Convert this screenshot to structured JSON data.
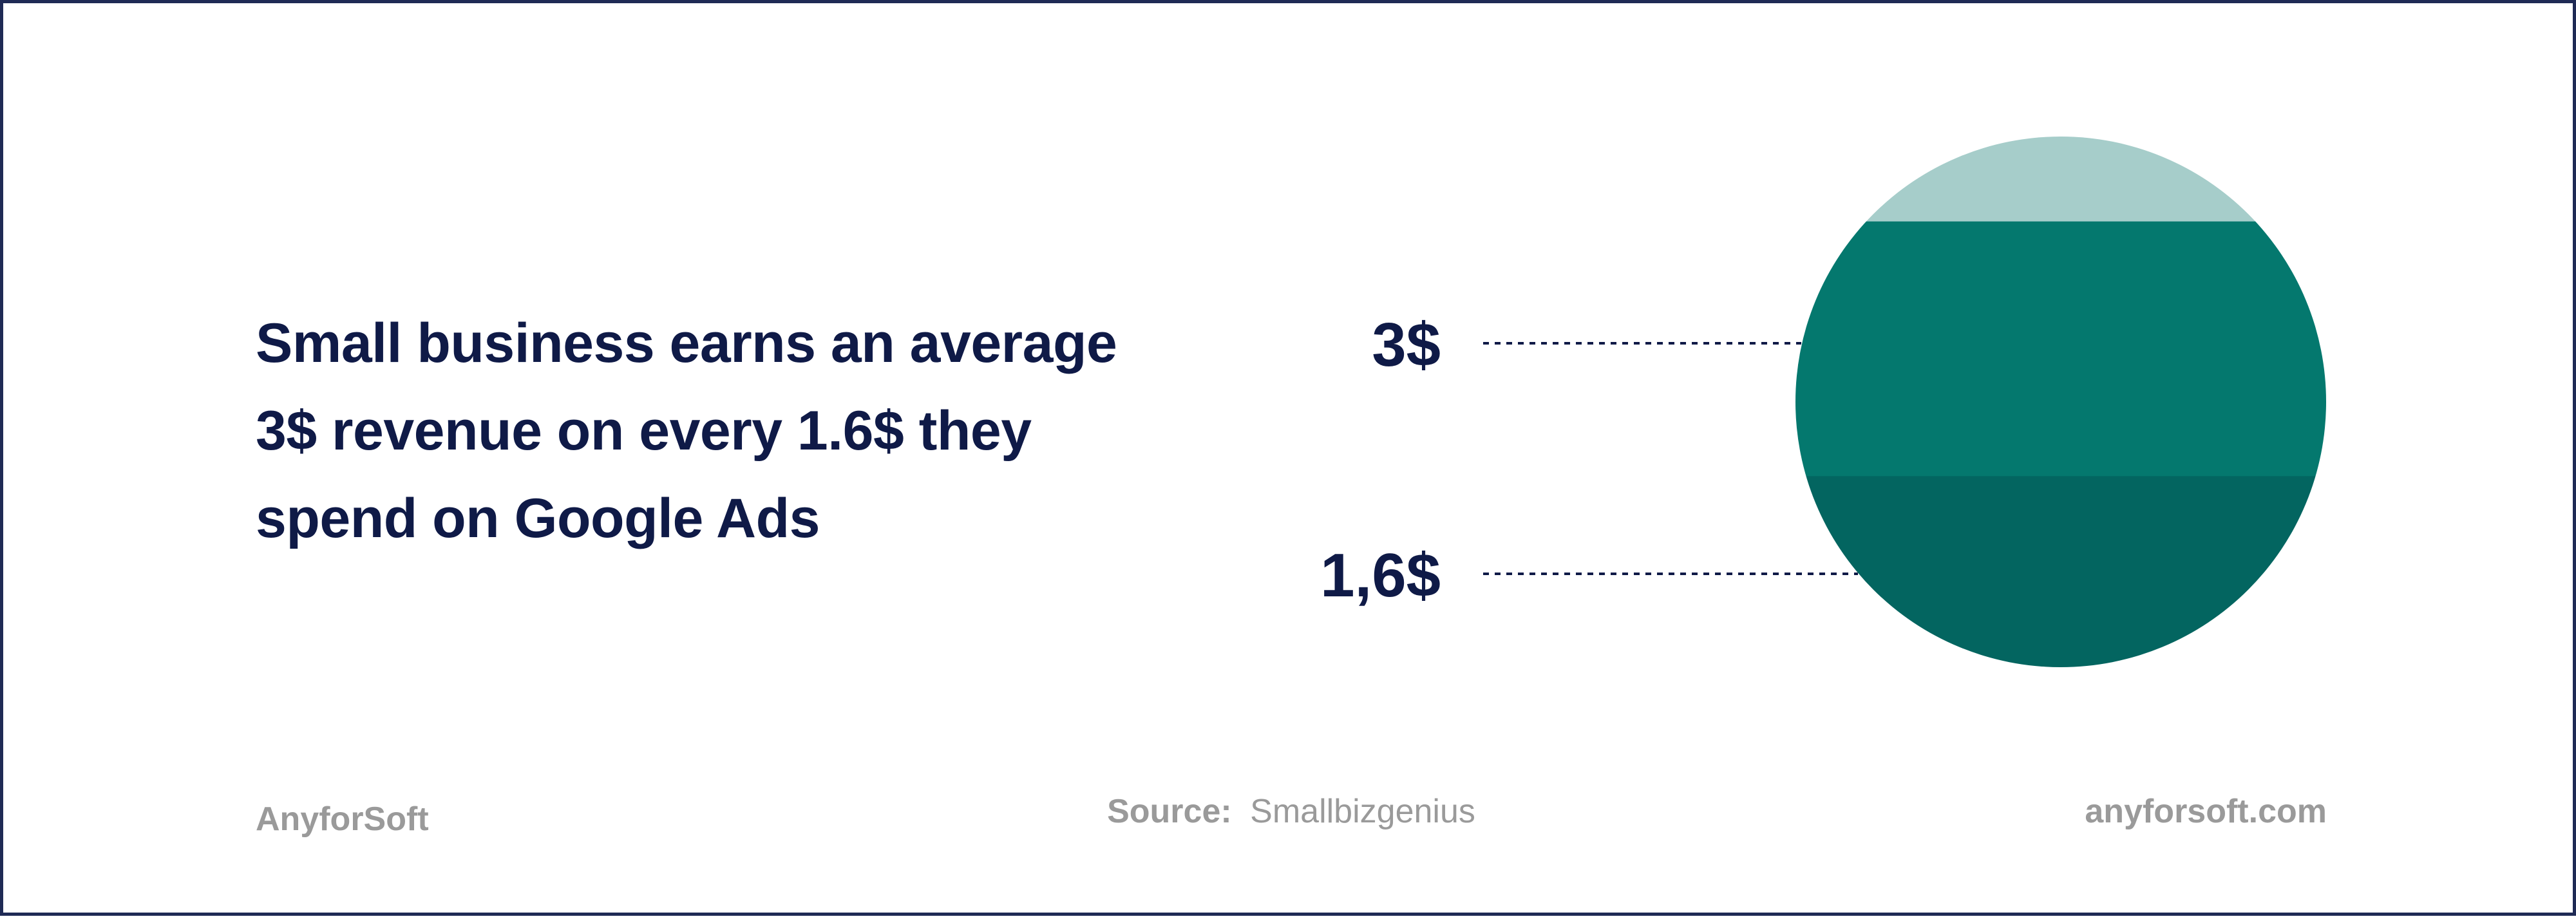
{
  "headline": {
    "lines": [
      "Small business earns an average",
      "3$ revenue on every 1.6$ they",
      "spend on Google Ads"
    ]
  },
  "chart_data": {
    "type": "area",
    "shape": "circle",
    "title": "",
    "bands": [
      {
        "label": "",
        "share": 0.16,
        "color": "#a6cdca"
      },
      {
        "label": "3$",
        "value": 3,
        "share": 0.48,
        "color": "#04786e"
      },
      {
        "label": "1,6$",
        "value": 1.6,
        "share": 0.36,
        "color": "#036560"
      }
    ]
  },
  "footer": {
    "brand": "AnyforSoft",
    "source_label": "Source:",
    "source_value": "Smallbizgenius",
    "url": "anyforsoft.com"
  }
}
